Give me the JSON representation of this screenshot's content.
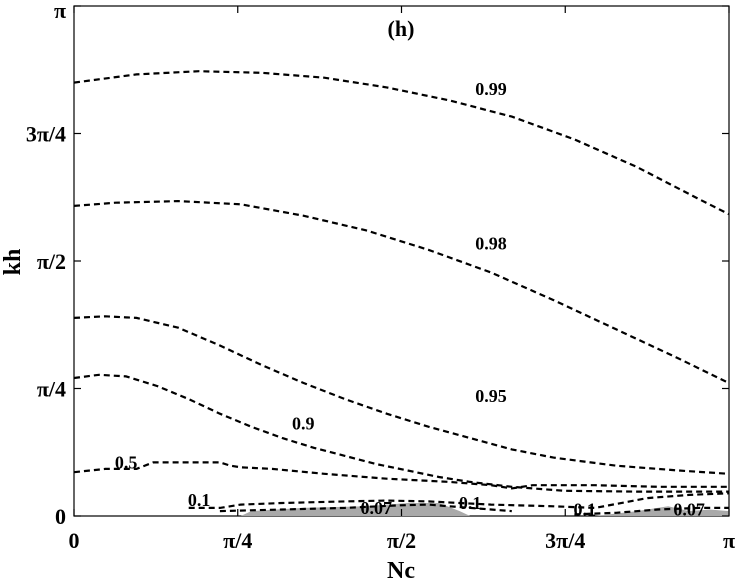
{
  "chart_data": {
    "type": "contour",
    "panel_label": "(h)",
    "xlabel": "Nc",
    "ylabel": "kh",
    "xlim": [
      0,
      3.14159
    ],
    "ylim": [
      0,
      3.14159
    ],
    "xticks": [
      {
        "value": 0,
        "label": "0"
      },
      {
        "value": 0.7854,
        "label": "π/4"
      },
      {
        "value": 1.5708,
        "label": "π/2"
      },
      {
        "value": 2.3562,
        "label": "3π/4"
      },
      {
        "value": 3.14159,
        "label": "π"
      }
    ],
    "yticks": [
      {
        "value": 0,
        "label": "0"
      },
      {
        "value": 0.7854,
        "label": "π/4"
      },
      {
        "value": 1.5708,
        "label": "π/2"
      },
      {
        "value": 2.3562,
        "label": "3π/4"
      },
      {
        "value": 3.14159,
        "label": "π"
      }
    ],
    "contours": [
      {
        "level": "0.99",
        "label_at": [
          2.0,
          2.63
        ],
        "points": [
          [
            0,
            2.67
          ],
          [
            0.3,
            2.72
          ],
          [
            0.6,
            2.74
          ],
          [
            0.9,
            2.73
          ],
          [
            1.2,
            2.7
          ],
          [
            1.5,
            2.64
          ],
          [
            1.8,
            2.56
          ],
          [
            2.1,
            2.46
          ],
          [
            2.4,
            2.32
          ],
          [
            2.7,
            2.15
          ],
          [
            3.0,
            1.95
          ],
          [
            3.14,
            1.86
          ]
        ]
      },
      {
        "level": "0.98",
        "label_at": [
          2.0,
          1.68
        ],
        "points": [
          [
            0,
            1.91
          ],
          [
            0.2,
            1.93
          ],
          [
            0.5,
            1.94
          ],
          [
            0.8,
            1.92
          ],
          [
            1.1,
            1.85
          ],
          [
            1.4,
            1.76
          ],
          [
            1.7,
            1.64
          ],
          [
            2.0,
            1.5
          ],
          [
            2.3,
            1.33
          ],
          [
            2.6,
            1.15
          ],
          [
            2.9,
            0.97
          ],
          [
            3.14,
            0.82
          ]
        ]
      },
      {
        "level": "0.95",
        "label_at": [
          2.0,
          0.74
        ],
        "points": [
          [
            0,
            1.22
          ],
          [
            0.15,
            1.23
          ],
          [
            0.3,
            1.22
          ],
          [
            0.5,
            1.16
          ],
          [
            0.7,
            1.05
          ],
          [
            0.9,
            0.93
          ],
          [
            1.1,
            0.82
          ],
          [
            1.3,
            0.72
          ],
          [
            1.5,
            0.63
          ],
          [
            1.7,
            0.55
          ],
          [
            1.9,
            0.48
          ],
          [
            2.1,
            0.41
          ],
          [
            2.3,
            0.36
          ],
          [
            2.6,
            0.31
          ],
          [
            2.9,
            0.28
          ],
          [
            3.14,
            0.26
          ]
        ]
      },
      {
        "level": "0.9",
        "label_at": [
          1.1,
          0.57
        ],
        "points": [
          [
            0,
            0.85
          ],
          [
            0.12,
            0.87
          ],
          [
            0.25,
            0.86
          ],
          [
            0.4,
            0.8
          ],
          [
            0.55,
            0.72
          ],
          [
            0.7,
            0.63
          ],
          [
            0.85,
            0.55
          ],
          [
            1.0,
            0.48
          ],
          [
            1.15,
            0.42
          ],
          [
            1.3,
            0.37
          ],
          [
            1.45,
            0.32
          ],
          [
            1.6,
            0.28
          ],
          [
            1.75,
            0.24
          ],
          [
            1.9,
            0.21
          ],
          [
            2.1,
            0.18
          ],
          [
            2.35,
            0.155
          ],
          [
            2.7,
            0.15
          ],
          [
            3.14,
            0.15
          ]
        ]
      },
      {
        "level": "0.5",
        "label_at": [
          0.25,
          0.33
        ],
        "points": [
          [
            0,
            0.27
          ],
          [
            0.15,
            0.29
          ],
          [
            0.3,
            0.29
          ],
          [
            0.38,
            0.33
          ],
          [
            0.5,
            0.33
          ],
          [
            0.7,
            0.33
          ],
          [
            0.75,
            0.31
          ],
          [
            0.8,
            0.3
          ],
          [
            0.95,
            0.29
          ],
          [
            1.2,
            0.26
          ],
          [
            1.5,
            0.23
          ],
          [
            1.8,
            0.21
          ],
          [
            2.0,
            0.19
          ],
          [
            2.1,
            0.17
          ],
          [
            2.2,
            0.19
          ],
          [
            2.5,
            0.19
          ],
          [
            2.8,
            0.18
          ],
          [
            3.14,
            0.18
          ]
        ]
      },
      {
        "level": "0.1",
        "label_at": [
          0.6,
          0.1
        ],
        "points": [
          [
            0.55,
            0.05
          ],
          [
            0.7,
            0.05
          ],
          [
            0.8,
            0.07
          ],
          [
            1.0,
            0.08
          ],
          [
            1.3,
            0.09
          ],
          [
            1.5,
            0.095
          ],
          [
            1.7,
            0.09
          ],
          [
            2.0,
            0.07
          ],
          [
            2.3,
            0.06
          ],
          [
            2.5,
            0.05
          ],
          [
            2.75,
            0.11
          ],
          [
            2.95,
            0.13
          ],
          [
            3.14,
            0.14
          ]
        ]
      },
      {
        "level": "0.07",
        "label_at": [
          1.45,
          0.05
        ],
        "points": [
          [
            0.7,
            0.03
          ],
          [
            1.0,
            0.04
          ],
          [
            1.3,
            0.05
          ],
          [
            1.55,
            0.065
          ],
          [
            1.7,
            0.07
          ],
          [
            1.9,
            0.05
          ],
          [
            2.1,
            0.03
          ]
        ]
      },
      {
        "level": "0.07",
        "label_at": [
          2.95,
          0.04
        ],
        "points": [
          [
            2.4,
            0.01
          ],
          [
            2.6,
            0.02
          ],
          [
            2.8,
            0.04
          ],
          [
            3.0,
            0.05
          ],
          [
            3.14,
            0.05
          ]
        ]
      }
    ],
    "extra_labels": [
      {
        "text": "0.1",
        "at": [
          1.9,
          0.08
        ]
      },
      {
        "text": "0.1",
        "at": [
          2.45,
          0.04
        ]
      }
    ],
    "shaded_regions": [
      [
        [
          0.8,
          0.0
        ],
        [
          0.85,
          0.03
        ],
        [
          1.1,
          0.05
        ],
        [
          1.4,
          0.06
        ],
        [
          1.6,
          0.08
        ],
        [
          1.75,
          0.08
        ],
        [
          1.85,
          0.03
        ],
        [
          1.9,
          0.0
        ]
      ],
      [
        [
          2.5,
          0.0
        ],
        [
          2.7,
          0.03
        ],
        [
          2.85,
          0.06
        ],
        [
          2.95,
          0.03
        ],
        [
          3.05,
          0.04
        ],
        [
          3.14,
          0.03
        ],
        [
          3.14,
          0.0
        ]
      ]
    ],
    "grid": false
  }
}
